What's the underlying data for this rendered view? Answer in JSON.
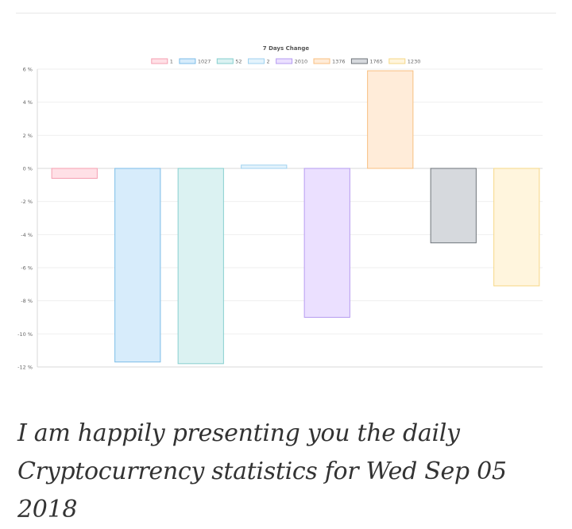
{
  "chart_data": {
    "type": "bar",
    "title": "7 Days Change",
    "ylim": [
      -12,
      6
    ],
    "yticks": [
      "6 %",
      "4 %",
      "2 %",
      "0 %",
      "-2 %",
      "-4 %",
      "-6 %",
      "-8 %",
      "-10 %",
      "-12 %"
    ],
    "legend_position": "top",
    "grid": true,
    "series": [
      {
        "name": "1",
        "value": -0.6,
        "fill": "#ffe0e6",
        "stroke": "#f59fb2"
      },
      {
        "name": "1027",
        "value": -11.7,
        "fill": "#d7ecfb",
        "stroke": "#7cbde8"
      },
      {
        "name": "52",
        "value": -11.8,
        "fill": "#dbf2f2",
        "stroke": "#86cfcf"
      },
      {
        "name": "2",
        "value": 0.2,
        "fill": "#e4f3fc",
        "stroke": "#9fd2ef"
      },
      {
        "name": "2010",
        "value": -9.0,
        "fill": "#ebe0ff",
        "stroke": "#b69cf0"
      },
      {
        "name": "1376",
        "value": 5.9,
        "fill": "#ffecd9",
        "stroke": "#f8bf80"
      },
      {
        "name": "1765",
        "value": -4.5,
        "fill": "#d6d9dd",
        "stroke": "#6f747a"
      },
      {
        "name": "1230",
        "value": -7.1,
        "fill": "#fff5dd",
        "stroke": "#f6d887"
      }
    ]
  },
  "caption": "I am happily presenting you the daily Cryptocurrency statistics for Wed Sep 05 2018"
}
